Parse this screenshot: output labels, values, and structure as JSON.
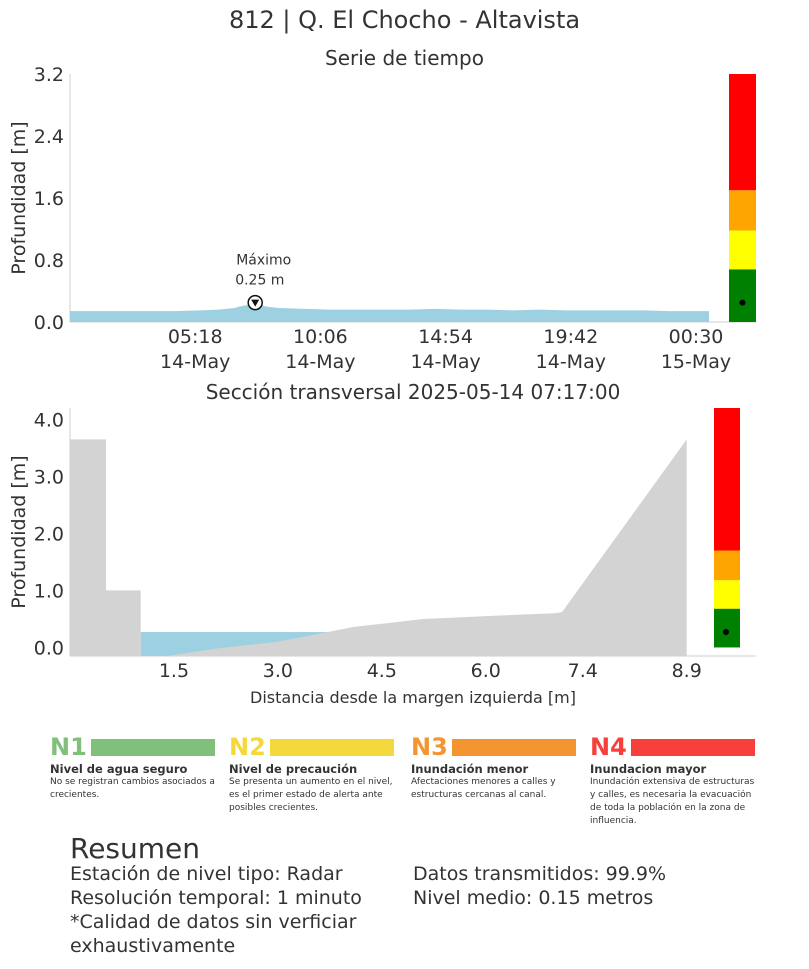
{
  "title": "812 | Q. El Chocho - Altavista",
  "timeseries": {
    "title": "Serie de tiempo",
    "ylabel": "Profundidad [m]",
    "max_label_line1": "Máximo",
    "max_label_line2": "0.25 m",
    "level_colors": [
      "#008000",
      "#ffff00",
      "#ffa500",
      "#ff0000"
    ],
    "level_thresholds": [
      0.0,
      0.68,
      1.18,
      1.7,
      3.2
    ]
  },
  "cross_section": {
    "title": "Sección transversal 2025-05-14 07:17:00",
    "ylabel": "Profundidad [m]",
    "xlabel": "Distancia desde la margen izquierda [m]",
    "level_thresholds": [
      0.0,
      0.68,
      1.18,
      1.7,
      4.2
    ]
  },
  "chart_data": [
    {
      "type": "area",
      "title": "Serie de tiempo",
      "ylabel": "Profundidad [m]",
      "ylim": [
        0.0,
        3.2
      ],
      "yticks": [
        "0.0",
        "0.8",
        "1.6",
        "2.4",
        "3.2"
      ],
      "xticks": [
        {
          "time": "05:18",
          "date": "14-May",
          "hours": 5.3
        },
        {
          "time": "10:06",
          "date": "14-May",
          "hours": 10.1
        },
        {
          "time": "14:54",
          "date": "14-May",
          "hours": 14.9
        },
        {
          "time": "19:42",
          "date": "14-May",
          "hours": 19.7
        },
        {
          "time": "00:30",
          "date": "15-May",
          "hours": 24.5
        }
      ],
      "xlim_hours": [
        0.5,
        26.8
      ],
      "series": [
        {
          "x_hours": [
            0.5,
            1.5,
            2.5,
            3.5,
            4.5,
            5.5,
            6.2,
            6.8,
            7.0,
            7.3,
            7.6,
            8.0,
            8.5,
            9.5,
            10.5,
            11.5,
            12.5,
            13.5,
            14.5,
            15.5,
            16.5,
            17.5,
            18.5,
            19.5,
            20.5,
            21.5,
            22.5,
            23.5,
            24.5,
            25.0
          ],
          "values": [
            0.14,
            0.14,
            0.14,
            0.14,
            0.14,
            0.15,
            0.16,
            0.18,
            0.2,
            0.22,
            0.25,
            0.2,
            0.18,
            0.17,
            0.16,
            0.16,
            0.16,
            0.16,
            0.17,
            0.16,
            0.16,
            0.15,
            0.16,
            0.15,
            0.15,
            0.15,
            0.15,
            0.14,
            0.14,
            0.14
          ]
        }
      ],
      "max_value": 0.25,
      "max_time_hours": 7.6,
      "current_level": 0.25
    },
    {
      "type": "area",
      "title": "Sección transversal 2025-05-14 07:17:00",
      "xlabel": "Distancia desde la margen izquierda [m]",
      "ylabel": "Profundidad [m]",
      "xticks": [
        "1.5",
        "3.0",
        "4.5",
        "6.0",
        "7.4",
        "8.9"
      ],
      "yticks": [
        "0.0",
        "1.0",
        "2.0",
        "3.0",
        "4.0"
      ],
      "xlim": [
        0.0,
        9.9
      ],
      "ylim": [
        -0.15,
        4.2
      ],
      "bed_profile": {
        "x": [
          0.0,
          0.0,
          0.52,
          0.52,
          1.02,
          1.02,
          1.4,
          2.1,
          3.0,
          4.1,
          5.1,
          6.0,
          7.0,
          7.1,
          8.9
        ],
        "y": [
          -0.15,
          3.65,
          3.65,
          1.0,
          1.0,
          -0.15,
          -0.15,
          -0.02,
          0.1,
          0.36,
          0.5,
          0.55,
          0.6,
          0.62,
          3.65
        ]
      },
      "water_level": 0.27,
      "current_level": 0.27
    }
  ],
  "legend": [
    {
      "code": "N1",
      "name": "Nivel de agua seguro",
      "desc": "No se registran cambios asociados a crecientes.",
      "color": "#81c07a"
    },
    {
      "code": "N2",
      "name": "Nivel de precaución",
      "desc": "Se presenta un aumento en el nivel, es el primer estado de alerta ante posibles crecientes.",
      "color": "#f5d93c"
    },
    {
      "code": "N3",
      "name": "Inundación menor",
      "desc": "Afectaciones menores a calles y estructuras cercanas al canal.",
      "color": "#f39530"
    },
    {
      "code": "N4",
      "name": "Inundacion mayor",
      "desc": "Inundación extensiva de estructuras y calles, es necesaria la evacuación de toda la población en la zona de influencia.",
      "color": "#f7403b"
    }
  ],
  "summary": {
    "title": "Resumen",
    "station": "Estación de nivel tipo: Radar",
    "resolution": "Resolución temporal: 1 minuto",
    "quality": "*Calidad de datos sin verficiar exhaustivamente",
    "transmitted": "Datos transmitidos: 99.9%",
    "mean_level": "Nivel medio: 0.15 metros"
  }
}
